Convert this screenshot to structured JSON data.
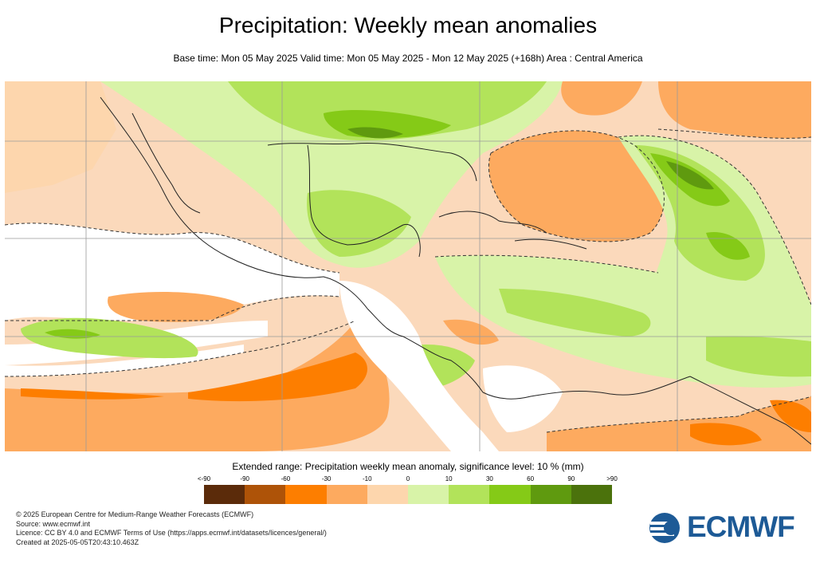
{
  "header": {
    "title": "Precipitation: Weekly mean anomalies",
    "subtitle": "Base time: Mon 05 May 2025 Valid time: Mon 05 May 2025 - Mon 12 May 2025 (+168h) Area : Central America"
  },
  "legend": {
    "title": "Extended range: Precipitation weekly mean anomaly, significance level: 10 % (mm)",
    "labels": [
      "<-90",
      "-90",
      "-60",
      "-30",
      "-10",
      "0",
      "10",
      "30",
      "60",
      "90",
      ">90"
    ],
    "colors": [
      "#5b2b0a",
      "#ae5308",
      "#fd7e00",
      "#fdaa5f",
      "#fdd6ad",
      "#d8f3a8",
      "#b2e35a",
      "#85ca17",
      "#5f9a0f",
      "#4b720c"
    ]
  },
  "footer": {
    "lines": [
      "© 2025 European Centre for Medium-Range Weather Forecasts (ECMWF)",
      "Source: www.ecmwf.int",
      "Licence: CC BY 4.0 and ECMWF Terms of Use (https://apps.ecmwf.int/datasets/licences/general/)",
      "Created at 2025-05-05T20:43:10.463Z"
    ]
  },
  "logo": {
    "text": "ECMWF",
    "color": "#1d5a96"
  }
}
